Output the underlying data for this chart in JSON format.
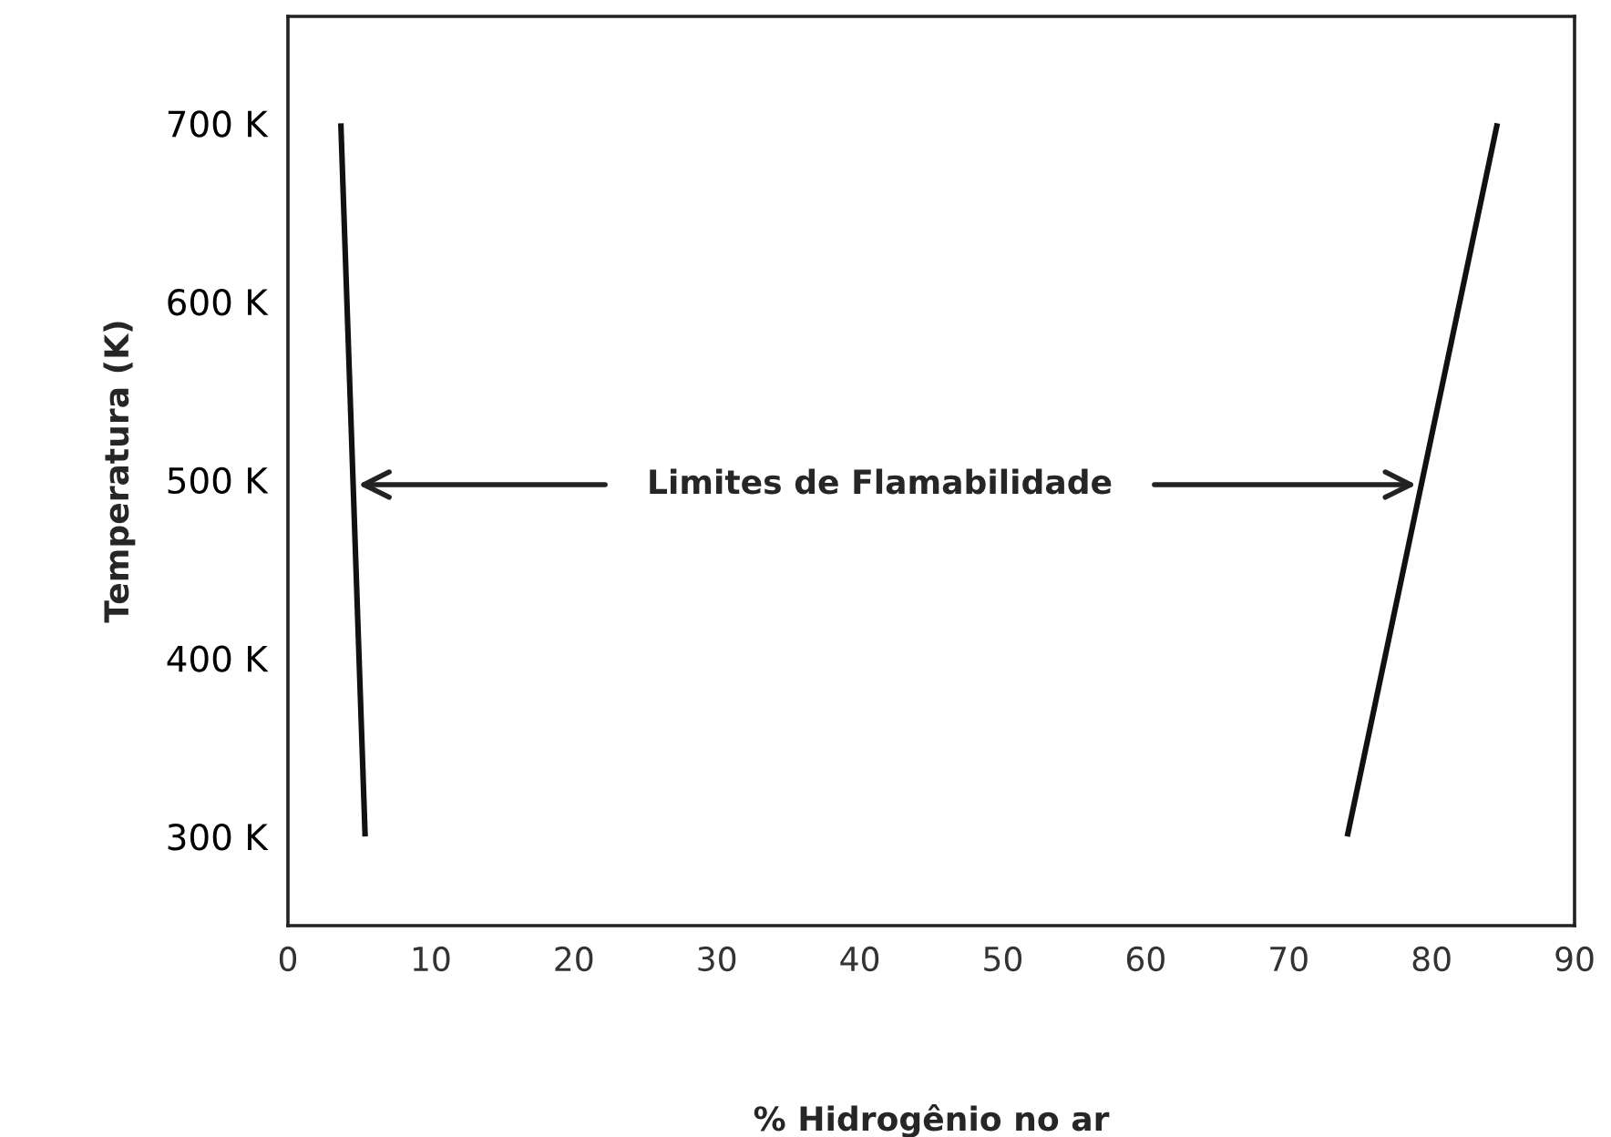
{
  "chart_data": {
    "type": "line",
    "xlabel": "% Hidrogênio no ar",
    "ylabel": "Temperatura (K)",
    "series": [
      {
        "color": "#111111",
        "x": [
          3.7,
          5.4
        ],
        "values": [
          700,
          300
        ]
      },
      {
        "color": "#111111",
        "x": [
          84.6,
          74.1
        ],
        "values": [
          700,
          300
        ]
      }
    ],
    "xlim": [
      0,
      90
    ],
    "xticks": [
      0,
      10,
      20,
      30,
      40,
      50,
      60,
      70,
      80,
      90
    ],
    "ylim": [
      250,
      760
    ],
    "yticks": [
      {
        "value": 300,
        "label": "300 K"
      },
      {
        "value": 400,
        "label": "400 K"
      },
      {
        "value": 500,
        "label": "500 K"
      },
      {
        "value": 600,
        "label": "600 K"
      },
      {
        "value": 700,
        "label": "700 K"
      }
    ],
    "annotations": [
      "Limites de Flamabilidade"
    ],
    "marker": "none",
    "line_style": "solid"
  }
}
